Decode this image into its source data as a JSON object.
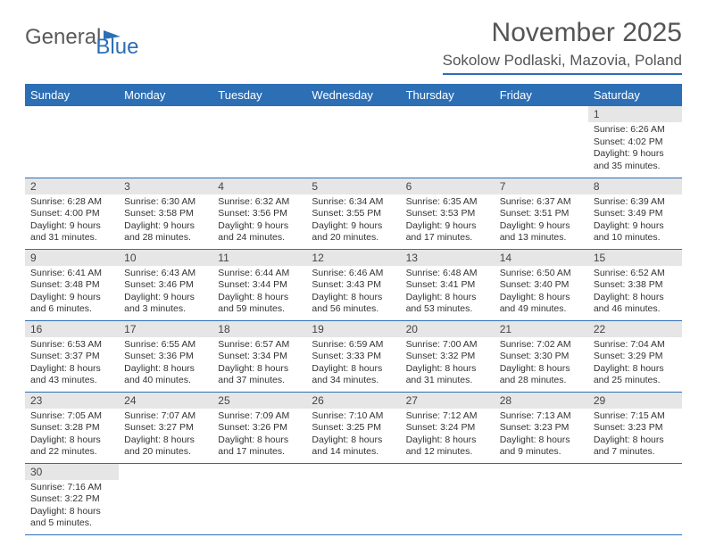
{
  "logo": {
    "part1": "General",
    "part2": "Blue"
  },
  "title": "November 2025",
  "location": "Sokolow Podlaski, Mazovia, Poland",
  "colors": {
    "header_bg": "#2d6fb5",
    "header_text": "#ffffff",
    "daynum_bg": "#e6e6e6",
    "row_border": "#2d6fb5",
    "text": "#333333",
    "title_text": "#555555"
  },
  "day_headers": [
    "Sunday",
    "Monday",
    "Tuesday",
    "Wednesday",
    "Thursday",
    "Friday",
    "Saturday"
  ],
  "weeks": [
    [
      null,
      null,
      null,
      null,
      null,
      null,
      {
        "n": "1",
        "sr": "6:26 AM",
        "ss": "4:02 PM",
        "dl": "9 hours and 35 minutes."
      }
    ],
    [
      {
        "n": "2",
        "sr": "6:28 AM",
        "ss": "4:00 PM",
        "dl": "9 hours and 31 minutes."
      },
      {
        "n": "3",
        "sr": "6:30 AM",
        "ss": "3:58 PM",
        "dl": "9 hours and 28 minutes."
      },
      {
        "n": "4",
        "sr": "6:32 AM",
        "ss": "3:56 PM",
        "dl": "9 hours and 24 minutes."
      },
      {
        "n": "5",
        "sr": "6:34 AM",
        "ss": "3:55 PM",
        "dl": "9 hours and 20 minutes."
      },
      {
        "n": "6",
        "sr": "6:35 AM",
        "ss": "3:53 PM",
        "dl": "9 hours and 17 minutes."
      },
      {
        "n": "7",
        "sr": "6:37 AM",
        "ss": "3:51 PM",
        "dl": "9 hours and 13 minutes."
      },
      {
        "n": "8",
        "sr": "6:39 AM",
        "ss": "3:49 PM",
        "dl": "9 hours and 10 minutes."
      }
    ],
    [
      {
        "n": "9",
        "sr": "6:41 AM",
        "ss": "3:48 PM",
        "dl": "9 hours and 6 minutes."
      },
      {
        "n": "10",
        "sr": "6:43 AM",
        "ss": "3:46 PM",
        "dl": "9 hours and 3 minutes."
      },
      {
        "n": "11",
        "sr": "6:44 AM",
        "ss": "3:44 PM",
        "dl": "8 hours and 59 minutes."
      },
      {
        "n": "12",
        "sr": "6:46 AM",
        "ss": "3:43 PM",
        "dl": "8 hours and 56 minutes."
      },
      {
        "n": "13",
        "sr": "6:48 AM",
        "ss": "3:41 PM",
        "dl": "8 hours and 53 minutes."
      },
      {
        "n": "14",
        "sr": "6:50 AM",
        "ss": "3:40 PM",
        "dl": "8 hours and 49 minutes."
      },
      {
        "n": "15",
        "sr": "6:52 AM",
        "ss": "3:38 PM",
        "dl": "8 hours and 46 minutes."
      }
    ],
    [
      {
        "n": "16",
        "sr": "6:53 AM",
        "ss": "3:37 PM",
        "dl": "8 hours and 43 minutes."
      },
      {
        "n": "17",
        "sr": "6:55 AM",
        "ss": "3:36 PM",
        "dl": "8 hours and 40 minutes."
      },
      {
        "n": "18",
        "sr": "6:57 AM",
        "ss": "3:34 PM",
        "dl": "8 hours and 37 minutes."
      },
      {
        "n": "19",
        "sr": "6:59 AM",
        "ss": "3:33 PM",
        "dl": "8 hours and 34 minutes."
      },
      {
        "n": "20",
        "sr": "7:00 AM",
        "ss": "3:32 PM",
        "dl": "8 hours and 31 minutes."
      },
      {
        "n": "21",
        "sr": "7:02 AM",
        "ss": "3:30 PM",
        "dl": "8 hours and 28 minutes."
      },
      {
        "n": "22",
        "sr": "7:04 AM",
        "ss": "3:29 PM",
        "dl": "8 hours and 25 minutes."
      }
    ],
    [
      {
        "n": "23",
        "sr": "7:05 AM",
        "ss": "3:28 PM",
        "dl": "8 hours and 22 minutes."
      },
      {
        "n": "24",
        "sr": "7:07 AM",
        "ss": "3:27 PM",
        "dl": "8 hours and 20 minutes."
      },
      {
        "n": "25",
        "sr": "7:09 AM",
        "ss": "3:26 PM",
        "dl": "8 hours and 17 minutes."
      },
      {
        "n": "26",
        "sr": "7:10 AM",
        "ss": "3:25 PM",
        "dl": "8 hours and 14 minutes."
      },
      {
        "n": "27",
        "sr": "7:12 AM",
        "ss": "3:24 PM",
        "dl": "8 hours and 12 minutes."
      },
      {
        "n": "28",
        "sr": "7:13 AM",
        "ss": "3:23 PM",
        "dl": "8 hours and 9 minutes."
      },
      {
        "n": "29",
        "sr": "7:15 AM",
        "ss": "3:23 PM",
        "dl": "8 hours and 7 minutes."
      }
    ],
    [
      {
        "n": "30",
        "sr": "7:16 AM",
        "ss": "3:22 PM",
        "dl": "8 hours and 5 minutes."
      },
      null,
      null,
      null,
      null,
      null,
      null
    ]
  ],
  "labels": {
    "sunrise": "Sunrise: ",
    "sunset": "Sunset: ",
    "daylight": "Daylight: "
  }
}
